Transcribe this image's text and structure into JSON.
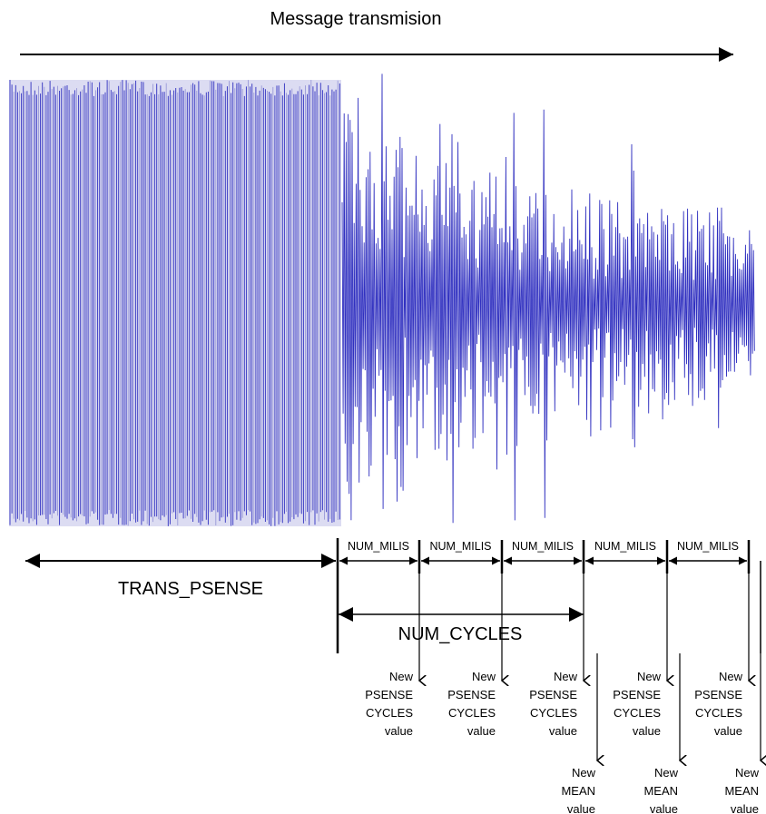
{
  "title": "Message transmision",
  "colors": {
    "signal": "#3030c0",
    "signal_light": "#9a9ad8",
    "line": "#000000"
  },
  "labels": {
    "trans_psense": "TRANS_PSENSE",
    "num_cycles": "NUM_CYCLES",
    "num_milis": "NUM_MILIS"
  },
  "psense_note": [
    "New",
    "PSENSE",
    "CYCLES",
    "value"
  ],
  "mean_note": [
    "New",
    "MEAN",
    "value"
  ],
  "num_milis_count": 5,
  "psense_note_count": 5,
  "mean_note_count": 3
}
